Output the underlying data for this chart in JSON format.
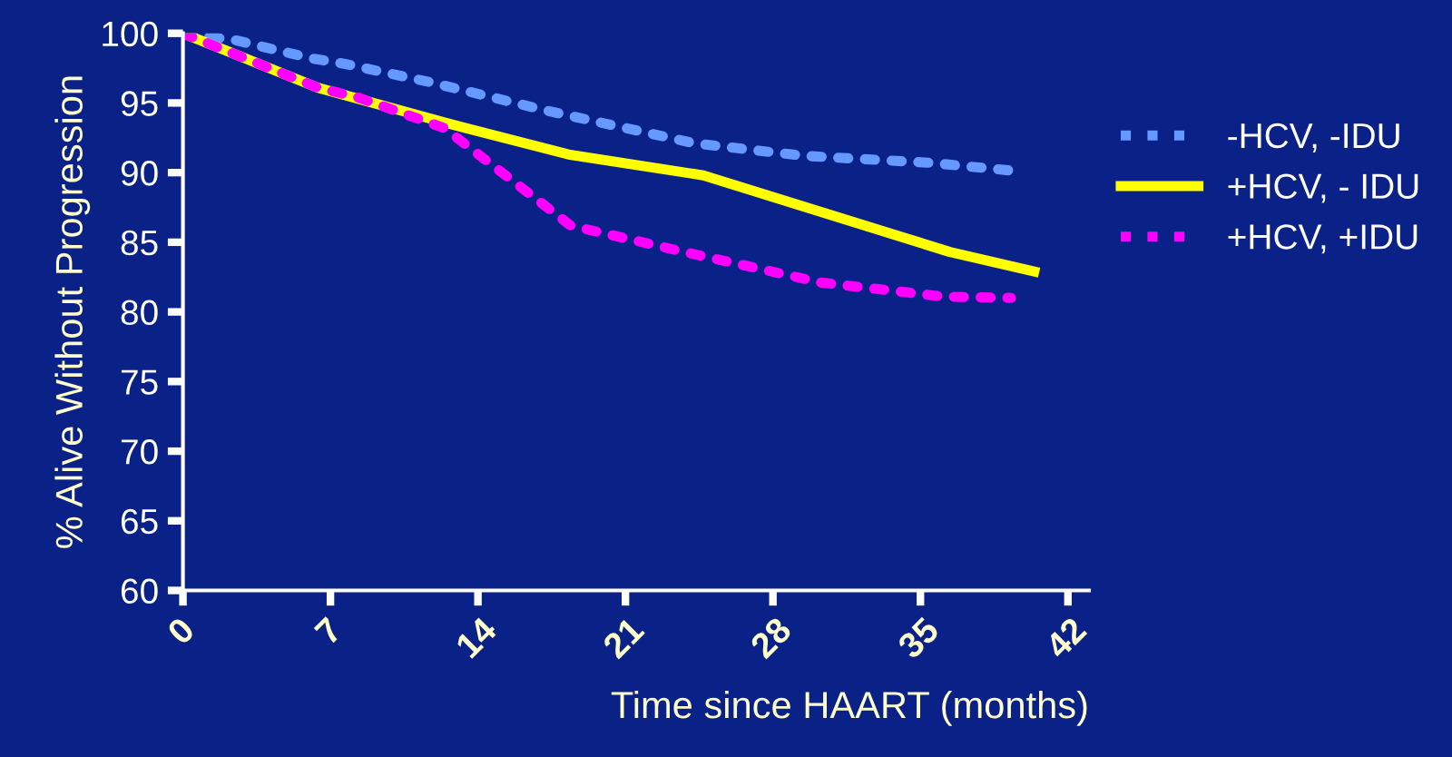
{
  "chart_data": {
    "type": "line",
    "xlabel": "Time since HAART (months)",
    "ylabel": "% Alive Without Progression",
    "xlim": [
      0,
      43
    ],
    "xticks": [
      0,
      7,
      14,
      21,
      28,
      35,
      42
    ],
    "ylim": [
      60,
      100
    ],
    "yticks": [
      60,
      65,
      70,
      75,
      80,
      85,
      90,
      95,
      100
    ],
    "grid": false,
    "legend": "right",
    "marker": "none",
    "series": [
      {
        "name": "-HCV, -IDU",
        "color": "#6699ff",
        "line_style": "dotted",
        "x": [
          0,
          2.5,
          6.1,
          7.7,
          11.7,
          17.4,
          24.3,
          29.5,
          35.5,
          39.6
        ],
        "values": [
          100,
          99.5,
          98.2,
          97.8,
          96.5,
          94.4,
          92.1,
          91.2,
          90.7,
          90.1
        ]
      },
      {
        "name": "+HCV, - IDU",
        "color": "#ffff00",
        "line_style": "solid",
        "x": [
          0,
          6.4,
          12.4,
          18.3,
          24.7,
          36.4,
          40.4
        ],
        "values": [
          100,
          96.1,
          93.6,
          91.3,
          89.8,
          84.3,
          82.9
        ]
      },
      {
        "name": "+HCV, +IDU",
        "color": "#ff00ff",
        "line_style": "dotted",
        "x": [
          0,
          6.4,
          8.3,
          12.4,
          18.4,
          23.8,
          30.3,
          36.1,
          39.3
        ],
        "values": [
          100,
          96.1,
          95.4,
          93.2,
          86.2,
          84.3,
          82.1,
          81.1,
          81.0
        ]
      }
    ]
  }
}
